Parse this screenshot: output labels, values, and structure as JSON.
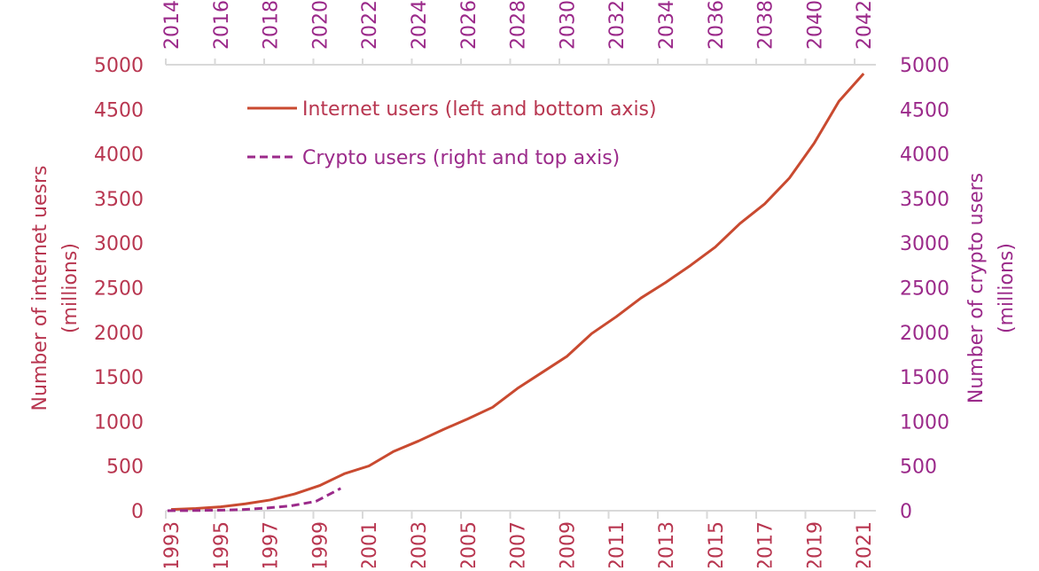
{
  "chart_data": {
    "type": "line",
    "colors": {
      "internet": "#c94a30",
      "internet_axis": "#b83650",
      "crypto": "#9b2a8a",
      "grid_axis": "#d9d9d9"
    },
    "left_ylabel_line1": "Number of internet uesrs",
    "left_ylabel_line2": "(millions)",
    "right_ylabel_line1": "Number of crypto users",
    "right_ylabel_line2": "(millions)",
    "left_ylim": [
      0,
      5000
    ],
    "right_ylim": [
      0,
      5000
    ],
    "y_ticks": [
      "0",
      "500",
      "1000",
      "1500",
      "2000",
      "2500",
      "3000",
      "3500",
      "4000",
      "4500",
      "5000"
    ],
    "bottom_x": [
      1993,
      1994,
      1995,
      1996,
      1997,
      1998,
      1999,
      2000,
      2001,
      2002,
      2003,
      2004,
      2005,
      2006,
      2007,
      2008,
      2009,
      2010,
      2011,
      2012,
      2013,
      2014,
      2015,
      2016,
      2017,
      2018,
      2019,
      2020,
      2021
    ],
    "bottom_tick_labels": [
      "1993",
      "1995",
      "1997",
      "1999",
      "2001",
      "2003",
      "2005",
      "2007",
      "2009",
      "2011",
      "2013",
      "2015",
      "2017",
      "2019",
      "2021"
    ],
    "top_x": [
      2014,
      2015,
      2016,
      2017,
      2018,
      2019,
      2020,
      2021,
      2022,
      2023,
      2024,
      2025,
      2026,
      2027,
      2028,
      2029,
      2030,
      2031,
      2032,
      2033,
      2034,
      2035,
      2036,
      2037,
      2038,
      2039,
      2040,
      2041,
      2042
    ],
    "top_tick_labels": [
      "2014",
      "2016",
      "2018",
      "2020",
      "2022",
      "2024",
      "2026",
      "2028",
      "2030",
      "2032",
      "2034",
      "2036",
      "2038",
      "2040",
      "2042"
    ],
    "grid": false,
    "legend_placement": "top-left",
    "series": [
      {
        "name": "Internet users (left and bottom axis)",
        "axes": "left-bottom",
        "style": "solid",
        "values": [
          14,
          25,
          44,
          77,
          120,
          188,
          281,
          414,
          502,
          665,
          781,
          910,
          1030,
          1160,
          1370,
          1550,
          1730,
          1985,
          2175,
          2385,
          2560,
          2750,
          2955,
          3220,
          3440,
          3730,
          4120,
          4590,
          4900
        ]
      },
      {
        "name": "Crypto users (right and top axis)",
        "axes": "right-top",
        "style": "dashed",
        "values": [
          0,
          2,
          5,
          12,
          30,
          55,
          105,
          250
        ]
      }
    ]
  }
}
